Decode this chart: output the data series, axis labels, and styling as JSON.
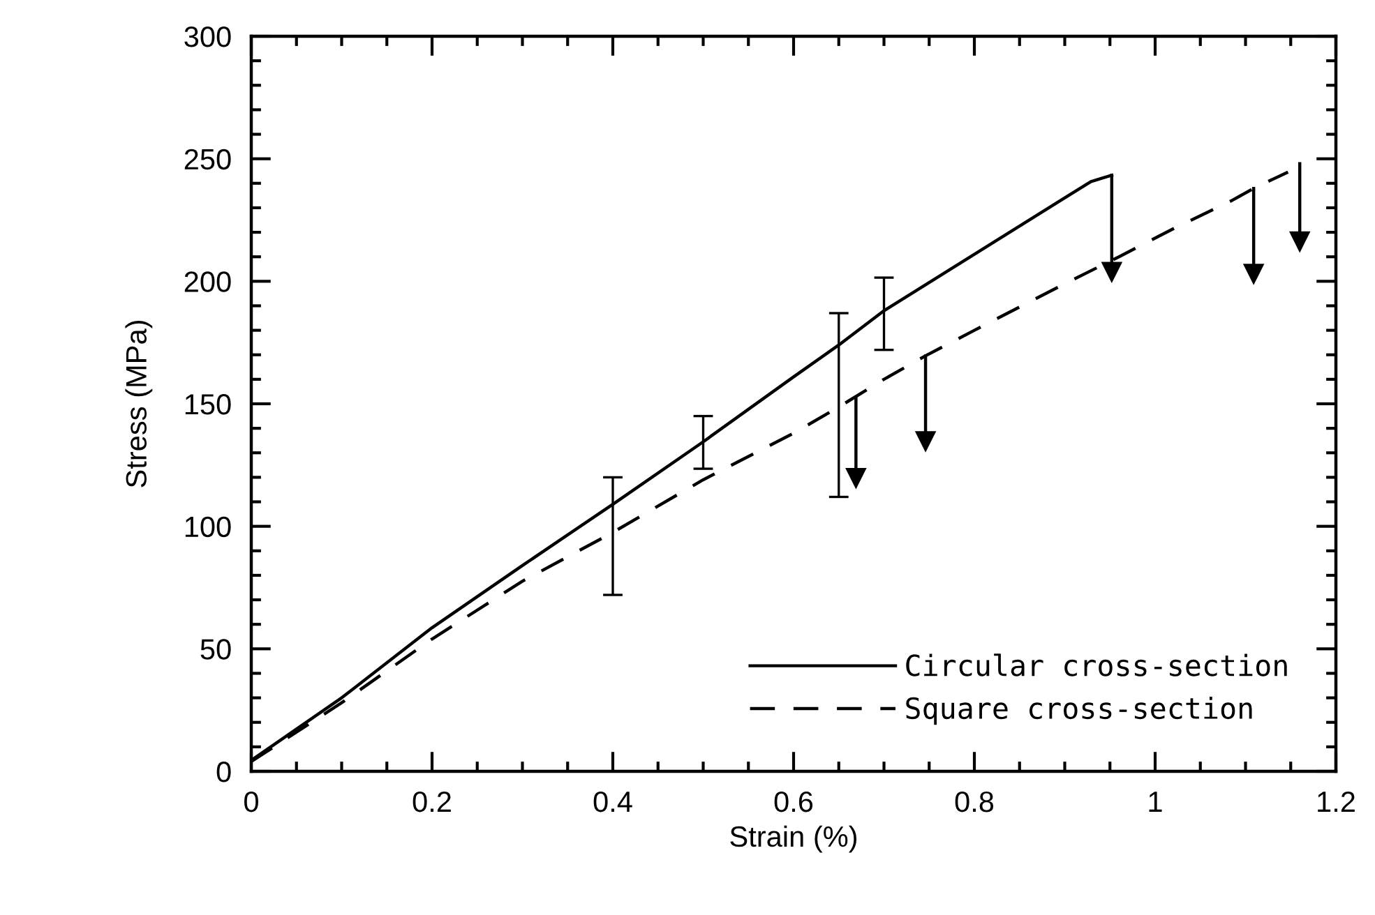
{
  "chart_data": {
    "type": "line",
    "xlabel": "Strain (%)",
    "ylabel": "Stress (MPa)",
    "xlim": [
      0,
      1.2
    ],
    "xticks": [
      0,
      0.2,
      0.4,
      0.6,
      0.8,
      1,
      1.2
    ],
    "ylim": [
      0,
      300
    ],
    "yticks": [
      0,
      50,
      100,
      150,
      200,
      250,
      300
    ],
    "grid": false,
    "legend": "bottom right",
    "series": [
      {
        "name": "Circular cross-section",
        "color": "#000000",
        "line_style": "solid",
        "x": [
          0,
          0.1,
          0.2,
          0.3,
          0.4,
          0.5,
          0.6,
          0.65,
          0.7,
          0.8,
          0.929,
          0.952
        ],
        "values": [
          4.5,
          30,
          58.6,
          84,
          109,
          134.5,
          161,
          174,
          188,
          211,
          240.7,
          243.3
        ],
        "errors": [
          null,
          null,
          null,
          null,
          [
            72,
            120
          ],
          [
            123.5,
            145
          ],
          null,
          [
            112,
            187
          ],
          [
            172,
            201.5
          ],
          null,
          null,
          null
        ]
      },
      {
        "name": "Square cross-section",
        "color": "#000000",
        "line_style": "dashed",
        "x": [
          0,
          0.1,
          0.2,
          0.3,
          0.4,
          0.5,
          0.6,
          0.65,
          0.7,
          0.746,
          0.8,
          0.9,
          0.96,
          1.022,
          1.084,
          1.109,
          1.147
        ],
        "values": [
          4,
          28,
          54,
          77.6,
          97.5,
          119,
          138,
          148.7,
          160,
          169.6,
          180,
          199,
          210,
          221.8,
          232.8,
          237.9,
          244.6
        ]
      },
      {
        "color": "#000000",
        "line_style": "solid",
        "marker": "triangle",
        "x": [
          0.952,
          0.952
        ],
        "values": [
          243.3,
          203.6
        ]
      },
      {
        "color": "#000000",
        "line_style": "solid",
        "marker": "triangle",
        "x": [
          1.109,
          1.109
        ],
        "values": [
          237.9,
          202.8
        ]
      },
      {
        "color": "#000000",
        "line_style": "solid",
        "marker": "triangle",
        "x": [
          1.16,
          1.16
        ],
        "values": [
          248,
          216
        ]
      },
      {
        "color": "#000000",
        "line_style": "solid",
        "marker": "triangle",
        "x": [
          0.746,
          0.746
        ],
        "values": [
          169.6,
          134.5
        ]
      },
      {
        "color": "#000000",
        "line_style": "solid",
        "marker": "triangle",
        "x": [
          0.669,
          0.669
        ],
        "values": [
          152.5,
          119.5
        ]
      }
    ]
  }
}
